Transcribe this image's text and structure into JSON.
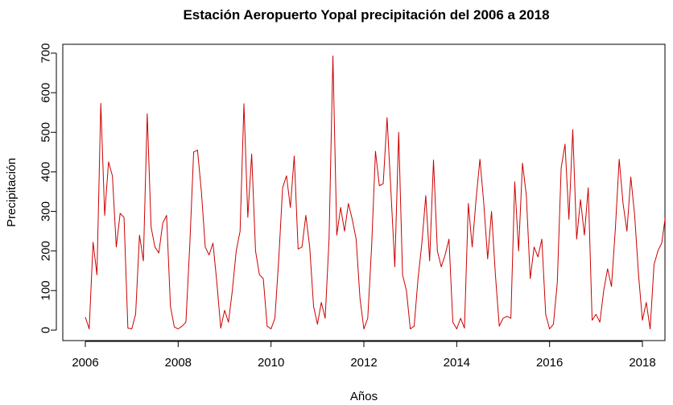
{
  "chart_data": {
    "type": "line",
    "title": "Estación Aeropuerto Yopal precipitación del 2006 a 2018",
    "xlabel": "Años",
    "ylabel": "Precipitación",
    "xlim": [
      2006,
      2018.5
    ],
    "ylim": [
      0,
      700
    ],
    "x_ticks": [
      2006,
      2008,
      2010,
      2012,
      2014,
      2016,
      2018
    ],
    "y_ticks": [
      0,
      100,
      200,
      300,
      400,
      500,
      600,
      700
    ],
    "grid": false,
    "legend": "none",
    "series": [
      {
        "color": "#cc0000",
        "x_start": "2006-01",
        "frequency": "monthly",
        "values": [
          33,
          3,
          222,
          140,
          573,
          290,
          425,
          390,
          210,
          295,
          285,
          5,
          3,
          40,
          240,
          175,
          547,
          260,
          210,
          195,
          270,
          290,
          60,
          8,
          3,
          10,
          20,
          215,
          450,
          455,
          350,
          210,
          190,
          220,
          120,
          5,
          50,
          20,
          100,
          200,
          250,
          572,
          285,
          445,
          200,
          140,
          130,
          10,
          3,
          30,
          180,
          360,
          390,
          310,
          440,
          205,
          210,
          290,
          210,
          60,
          15,
          70,
          30,
          230,
          693,
          240,
          310,
          250,
          320,
          280,
          230,
          80,
          3,
          30,
          210,
          452,
          365,
          370,
          537,
          350,
          160,
          500,
          140,
          100,
          3,
          10,
          130,
          220,
          340,
          175,
          430,
          200,
          160,
          190,
          230,
          20,
          3,
          30,
          5,
          320,
          210,
          330,
          432,
          320,
          180,
          300,
          140,
          10,
          30,
          35,
          30,
          375,
          200,
          422,
          340,
          130,
          210,
          185,
          230,
          40,
          3,
          15,
          120,
          410,
          470,
          280,
          507,
          230,
          330,
          240,
          360,
          25,
          40,
          20,
          100,
          155,
          110,
          255,
          432,
          320,
          250,
          387,
          290,
          140,
          25,
          70,
          3,
          165,
          200,
          220,
          292
        ]
      }
    ]
  }
}
